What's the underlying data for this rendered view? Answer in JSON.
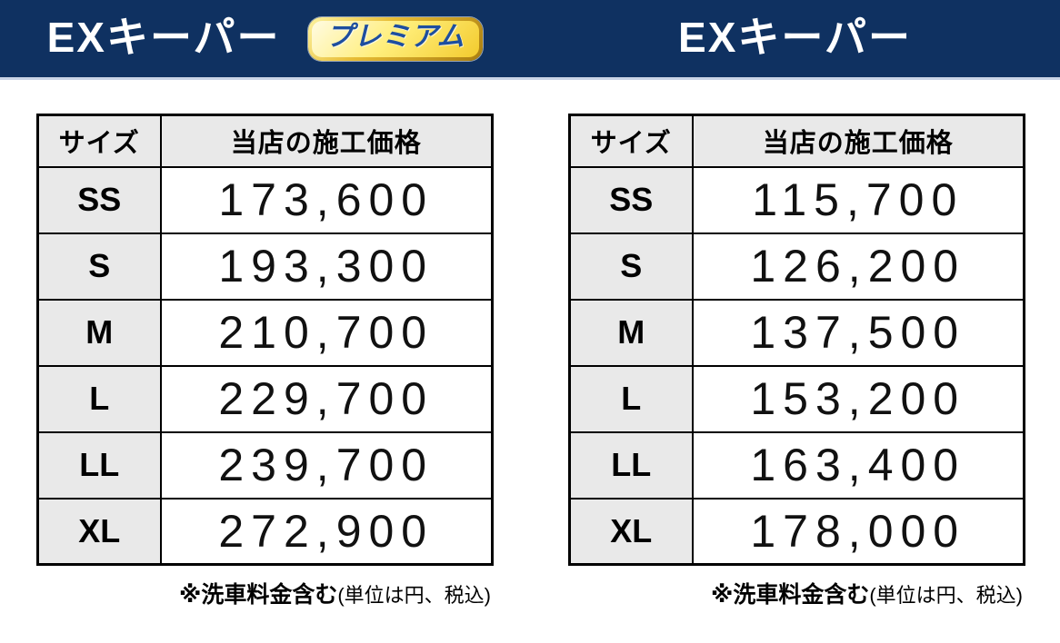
{
  "header": {
    "left": {
      "title": "EXキーパー",
      "badge": "プレミアム"
    },
    "right": {
      "title": "EXキーパー"
    }
  },
  "panels": {
    "premium": {
      "columns": {
        "size": "サイズ",
        "price": "当店の施工価格"
      },
      "rows": [
        {
          "size": "SS",
          "price": "173,600"
        },
        {
          "size": "S",
          "price": "193,300"
        },
        {
          "size": "M",
          "price": "210,700"
        },
        {
          "size": "L",
          "price": "229,700"
        },
        {
          "size": "LL",
          "price": "239,700"
        },
        {
          "size": "XL",
          "price": "272,900"
        }
      ],
      "note": {
        "bold": "※洗車料金含む",
        "paren": "(単位は円、税込)"
      }
    },
    "standard": {
      "columns": {
        "size": "サイズ",
        "price": "当店の施工価格"
      },
      "rows": [
        {
          "size": "SS",
          "price": "115,700"
        },
        {
          "size": "S",
          "price": "126,200"
        },
        {
          "size": "M",
          "price": "137,500"
        },
        {
          "size": "L",
          "price": "153,200"
        },
        {
          "size": "LL",
          "price": "163,400"
        },
        {
          "size": "XL",
          "price": "178,000"
        }
      ],
      "note": {
        "bold": "※洗車料金含む",
        "paren": "(単位は円、税込)"
      }
    }
  },
  "colors": {
    "navy": "#0f3161",
    "header_divider": "#c9d4e6",
    "cell_gray": "#e9e9e9",
    "border_black": "#000000",
    "badge_blue": "#1d4e9f",
    "badge_gold_dark": "#a97d10",
    "badge_gold_mid": "#e7bc35",
    "badge_gold_light": "#fdf3a0",
    "badge_fill_light": "#fffbe2",
    "badge_fill_mid": "#ffee7a",
    "badge_fill_deep": "#f3cb2e"
  }
}
